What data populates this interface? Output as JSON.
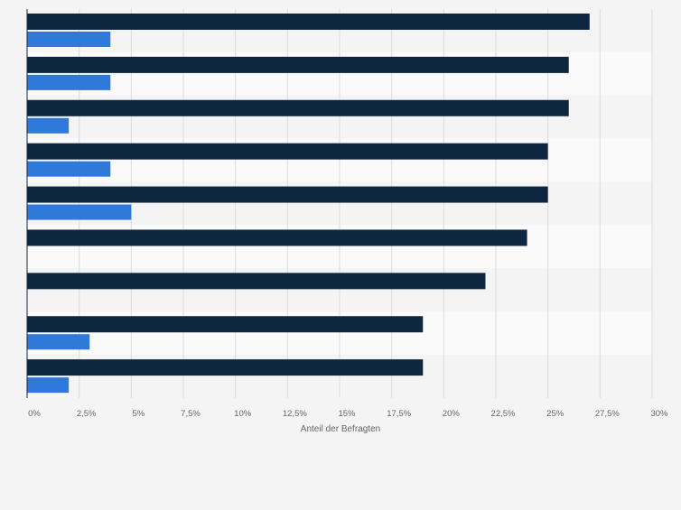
{
  "chart_data": {
    "type": "bar",
    "orientation": "horizontal",
    "categories": [
      "",
      "",
      "",
      "",
      "",
      "",
      "",
      "",
      ""
    ],
    "series": [
      {
        "values": [
          27,
          26,
          26,
          25,
          25,
          24,
          22,
          19,
          19
        ],
        "color": "#0f2640"
      },
      {
        "values": [
          4,
          4,
          2,
          4,
          5,
          0,
          0,
          3,
          2
        ],
        "color": "#2e79d9"
      }
    ],
    "x_ticks": [
      "0%",
      "2,5%",
      "5%",
      "7,5%",
      "10%",
      "12,5%",
      "15%",
      "17,5%",
      "20%",
      "22,5%",
      "25%",
      "27,5%",
      "30%"
    ],
    "xlim": [
      0,
      30
    ],
    "xlabel": "Anteil der Befragten",
    "grid": true,
    "band_colors": [
      "#f4f4f4",
      "#fafafa"
    ]
  }
}
